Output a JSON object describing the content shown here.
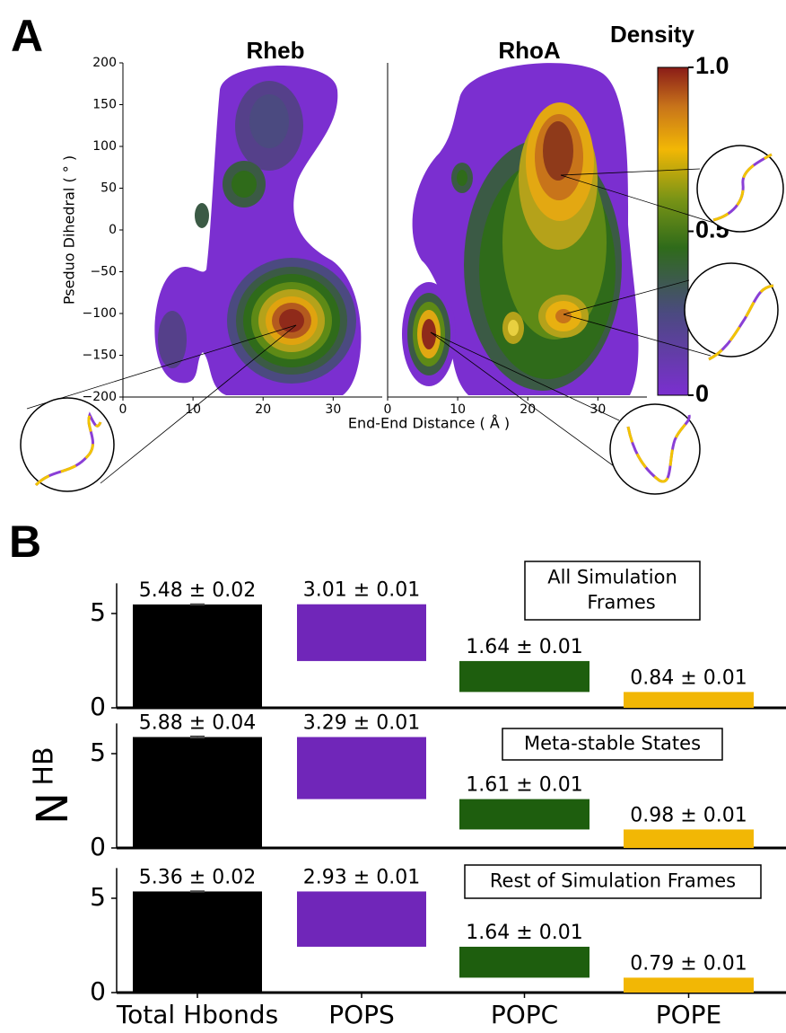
{
  "chart_data": [
    {
      "type": "contour",
      "panel_label": "A",
      "title": "Rheb",
      "xlabel": "End-End Distance ( Å )",
      "ylabel": "Pseduo Dihedral ( ° )",
      "xlim": [
        0,
        37
      ],
      "xticks": [
        0,
        10,
        20,
        30
      ],
      "ylim": [
        -200,
        200
      ],
      "yticks": [
        200,
        150,
        100,
        50,
        0,
        {
          "value": -50,
          "label": "−50"
        },
        {
          "value": -100,
          "label": "−100"
        },
        {
          "value": -150,
          "label": "−150"
        },
        {
          "value": -200,
          "label": "−200"
        }
      ]
    },
    {
      "type": "contour",
      "title": "RhoA",
      "xlim": [
        0,
        37
      ],
      "xticks": [
        0,
        10,
        20,
        30
      ],
      "ylim": [
        -200,
        200
      ]
    },
    {
      "type": "colorbar",
      "title": "Density",
      "clim": [
        0,
        1
      ],
      "ticks": [
        {
          "value": 1,
          "label": "1.0"
        },
        0.5,
        0
      ]
    },
    {
      "type": "bar",
      "panel_label": "B",
      "ylabel": "N",
      "ylabel_sub": "HB",
      "categories": [
        "Total Hbonds",
        "POPS",
        "POPC",
        "POPE"
      ],
      "colors": [
        "#000000",
        "#7026b9",
        "#1e5e0e",
        "#f2b705"
      ],
      "ylim": [
        0,
        6.6
      ],
      "yticks": [
        0,
        5
      ],
      "panels": [
        {
          "annotation": [
            "All Simulation",
            "Frames"
          ],
          "values": [
            5.48,
            3.01,
            1.64,
            0.84
          ],
          "errors": [
            0.02,
            0.01,
            0.01,
            0.01
          ],
          "value_labels": [
            "5.48 ± 0.02",
            "3.01 ± 0.01",
            "1.64 ± 0.01",
            "0.84 ± 0.01"
          ]
        },
        {
          "annotation": [
            "Meta-stable States"
          ],
          "values": [
            5.88,
            3.29,
            1.61,
            0.98
          ],
          "errors": [
            0.04,
            0.01,
            0.01,
            0.01
          ],
          "value_labels": [
            "5.88 ± 0.04",
            "3.29 ± 0.01",
            "1.61 ± 0.01",
            "0.98 ± 0.01"
          ]
        },
        {
          "annotation": [
            "Rest of Simulation Frames"
          ],
          "values": [
            5.36,
            2.93,
            1.64,
            0.79
          ],
          "errors": [
            0.02,
            0.01,
            0.01,
            0.01
          ],
          "value_labels": [
            "5.36 ± 0.02",
            "2.93 ± 0.01",
            "1.64 ± 0.01",
            "0.79 ± 0.01"
          ]
        }
      ]
    }
  ]
}
